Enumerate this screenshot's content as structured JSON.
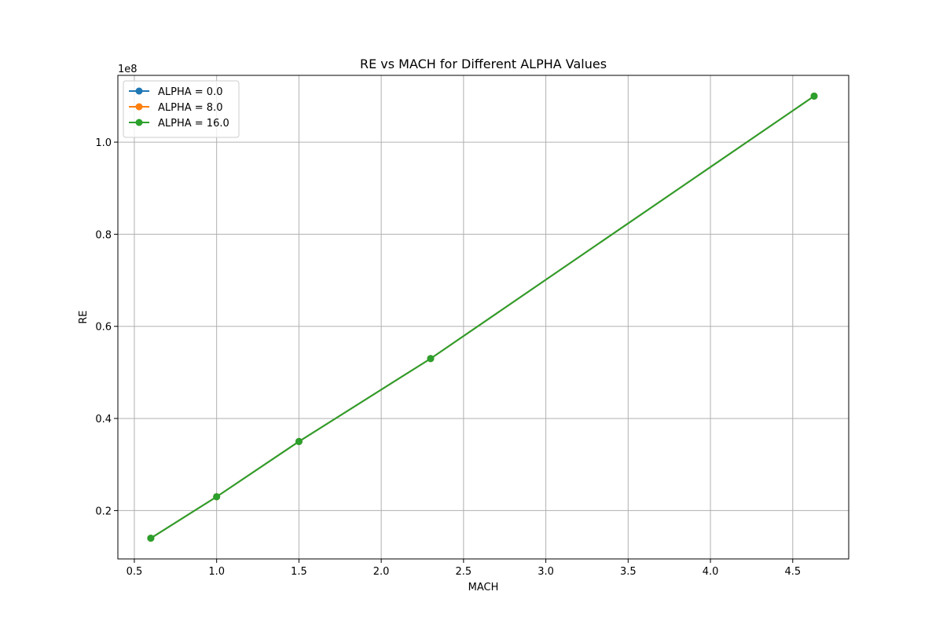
{
  "chart_data": {
    "type": "line",
    "title": "RE vs MACH for Different ALPHA Values",
    "xlabel": "MACH",
    "ylabel": "RE",
    "y_offset_label": "1e8",
    "y_scale_factor": 100000000,
    "xlim": [
      0.4,
      4.84
    ],
    "ylim": [
      9500000,
      114500000
    ],
    "x_ticks": [
      0.5,
      1.0,
      1.5,
      2.0,
      2.5,
      3.0,
      3.5,
      4.0,
      4.5
    ],
    "x_tick_labels": [
      "0.5",
      "1.0",
      "1.5",
      "2.0",
      "2.5",
      "3.0",
      "3.5",
      "4.0",
      "4.5"
    ],
    "y_ticks": [
      20000000,
      40000000,
      60000000,
      80000000,
      100000000
    ],
    "y_tick_labels": [
      "0.2",
      "0.4",
      "0.6",
      "0.8",
      "1.0"
    ],
    "grid": true,
    "legend_position": "top-left",
    "x": [
      0.6,
      1.0,
      1.5,
      2.3,
      4.63
    ],
    "series": [
      {
        "name": "ALPHA = 0.0",
        "color": "#1f77b4",
        "values": [
          14000000,
          23000000,
          35000000,
          53000000,
          110000000
        ]
      },
      {
        "name": "ALPHA = 8.0",
        "color": "#ff7f0e",
        "values": [
          14000000,
          23000000,
          35000000,
          53000000,
          110000000
        ]
      },
      {
        "name": "ALPHA = 16.0",
        "color": "#2ca02c",
        "values": [
          14000000,
          23000000,
          35000000,
          53000000,
          110000000
        ]
      }
    ]
  }
}
